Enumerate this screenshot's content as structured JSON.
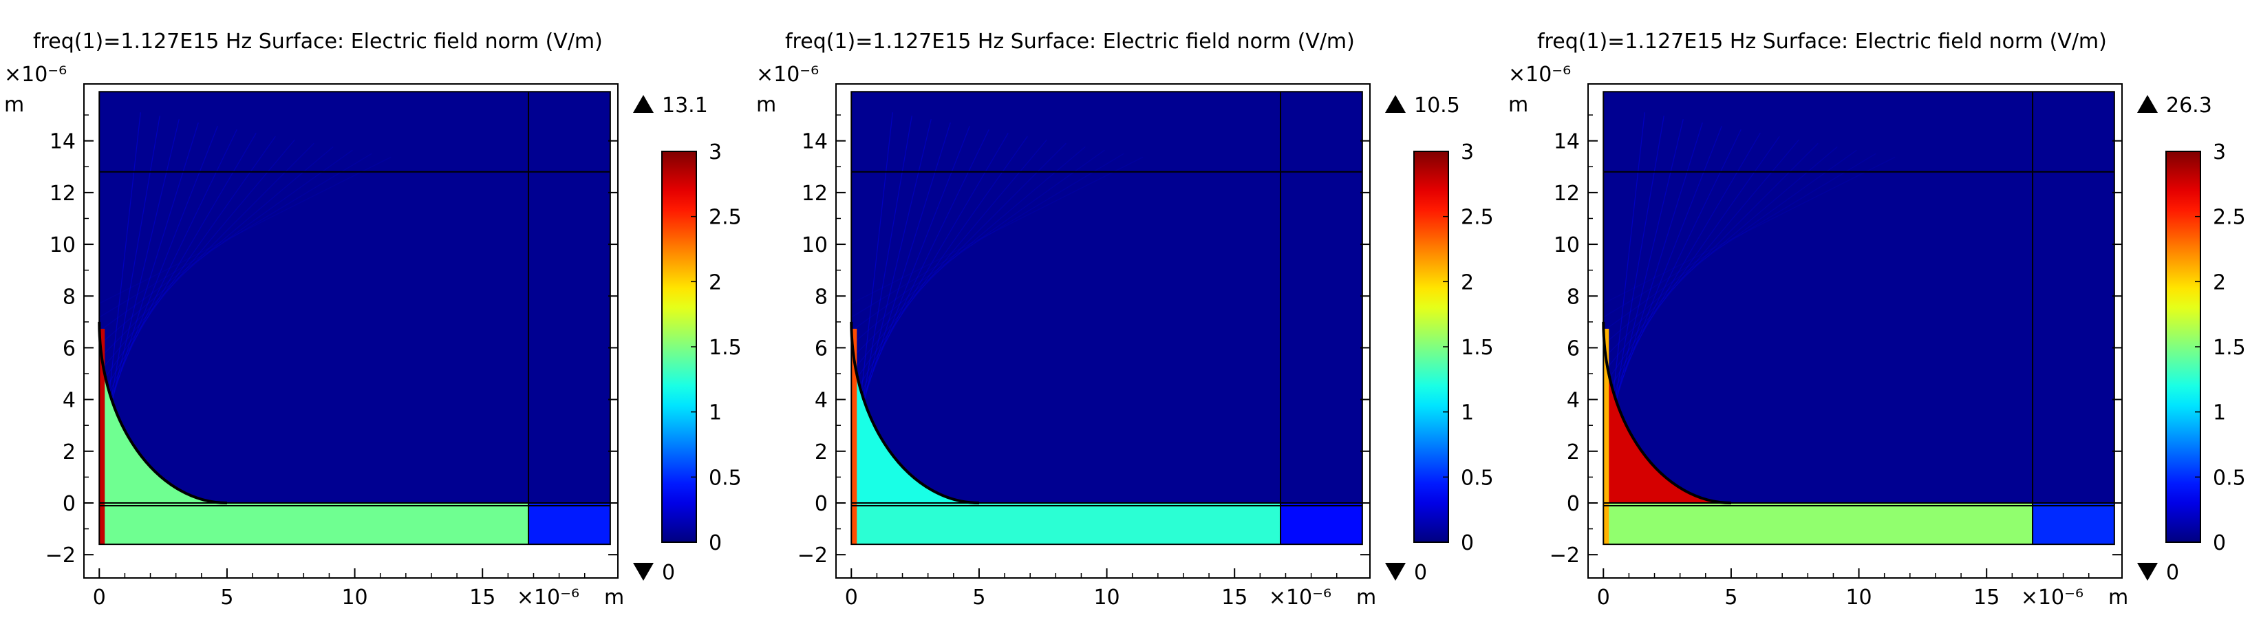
{
  "chart_data": [
    {
      "type": "heatmap",
      "title": "freq(1)=1.127E15 Hz  Surface: Electric field norm (V/m)",
      "xlabel": "m",
      "ylabel": "m",
      "x_exponent": "×10⁻⁶",
      "y_exponent": "×10⁻⁶",
      "x_ticks": [
        0,
        5,
        10,
        15
      ],
      "y_ticks": [
        -2,
        0,
        2,
        4,
        6,
        8,
        10,
        12,
        14
      ],
      "xlim": [
        -0.6,
        20.3
      ],
      "ylim": [
        -2.9,
        16.2
      ],
      "domain": {
        "x": [
          0,
          20
        ],
        "y": [
          -1.6,
          15.9
        ],
        "divider_x": 16.8,
        "divider_y": 12.8,
        "interface_y": 0
      },
      "particle": {
        "radius": 5.0,
        "top_y": 7.0,
        "base_y": 0
      },
      "color_range": [
        0,
        3
      ],
      "colorbar_ticks": [
        0,
        0.5,
        1,
        1.5,
        2,
        2.5,
        3
      ],
      "max_value": "13.1",
      "min_value": "0",
      "field_levels": {
        "particle": 1.45,
        "particle_edge": 2.8,
        "substrate": 1.45,
        "substrate_right": 0.45,
        "surroundings": 0.05
      }
    },
    {
      "type": "heatmap",
      "title": "freq(1)=1.127E15 Hz  Surface: Electric field norm (V/m)",
      "xlabel": "m",
      "ylabel": "m",
      "x_exponent": "×10⁻⁶",
      "y_exponent": "×10⁻⁶",
      "x_ticks": [
        0,
        5,
        10,
        15
      ],
      "y_ticks": [
        -2,
        0,
        2,
        4,
        6,
        8,
        10,
        12,
        14
      ],
      "xlim": [
        -0.6,
        20.3
      ],
      "ylim": [
        -2.9,
        16.2
      ],
      "domain": {
        "x": [
          0,
          20
        ],
        "y": [
          -1.6,
          15.9
        ],
        "divider_x": 16.8,
        "divider_y": 12.8,
        "interface_y": 0
      },
      "particle": {
        "radius": 5.0,
        "top_y": 7.0,
        "base_y": 0
      },
      "color_range": [
        0,
        3
      ],
      "colorbar_ticks": [
        0,
        0.5,
        1,
        1.5,
        2,
        2.5,
        3
      ],
      "max_value": "10.5",
      "min_value": "0",
      "field_levels": {
        "particle": 1.2,
        "particle_edge": 2.4,
        "substrate": 1.25,
        "substrate_right": 0.4,
        "surroundings": 0.05
      }
    },
    {
      "type": "heatmap",
      "title": "freq(1)=1.127E15 Hz  Surface: Electric field norm (V/m)",
      "xlabel": "m",
      "ylabel": "m",
      "x_exponent": "×10⁻⁶",
      "y_exponent": "×10⁻⁶",
      "x_ticks": [
        0,
        5,
        10,
        15
      ],
      "y_ticks": [
        -2,
        0,
        2,
        4,
        6,
        8,
        10,
        12,
        14
      ],
      "xlim": [
        -0.6,
        20.3
      ],
      "ylim": [
        -2.9,
        16.2
      ],
      "domain": {
        "x": [
          0,
          20
        ],
        "y": [
          -1.6,
          15.9
        ],
        "divider_x": 16.8,
        "divider_y": 12.8,
        "interface_y": 0
      },
      "particle": {
        "radius": 5.0,
        "top_y": 7.0,
        "base_y": 0
      },
      "color_range": [
        0,
        3
      ],
      "colorbar_ticks": [
        0,
        0.5,
        1,
        1.5,
        2,
        2.5,
        3
      ],
      "max_value": "26.3",
      "min_value": "0",
      "field_levels": {
        "particle": 2.75,
        "particle_edge": 2.1,
        "substrate": 1.55,
        "substrate_right": 0.5,
        "surroundings": 0.05
      }
    }
  ]
}
